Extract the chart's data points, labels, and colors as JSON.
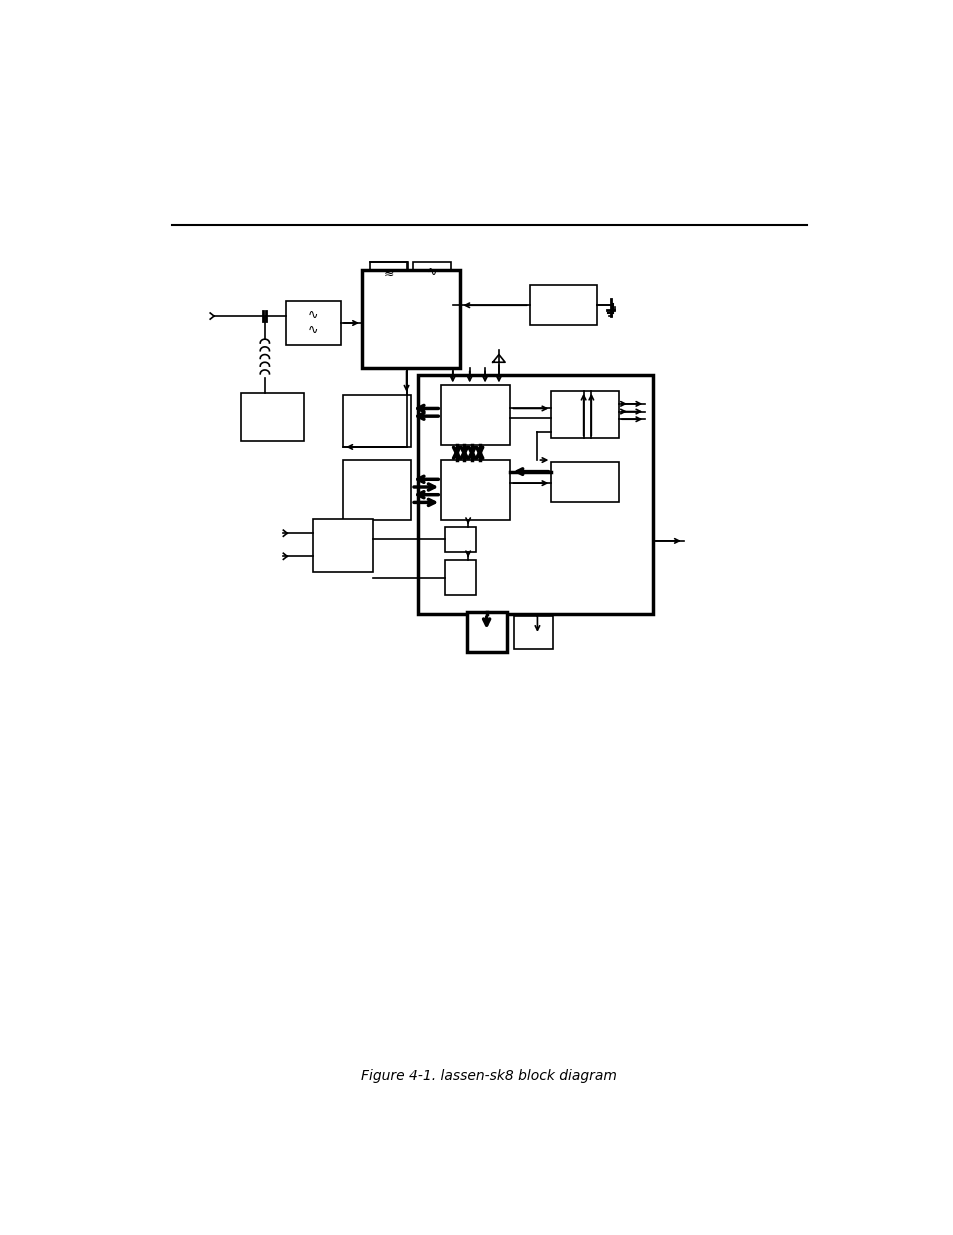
{
  "title": "Figure 4-1. lassen-sk8 block diagram",
  "bg_color": "#ffffff",
  "lc": "#000000",
  "thick": 2.5,
  "thin": 1.2,
  "fig_w": 9.54,
  "fig_h": 12.35,
  "dpi": 100
}
